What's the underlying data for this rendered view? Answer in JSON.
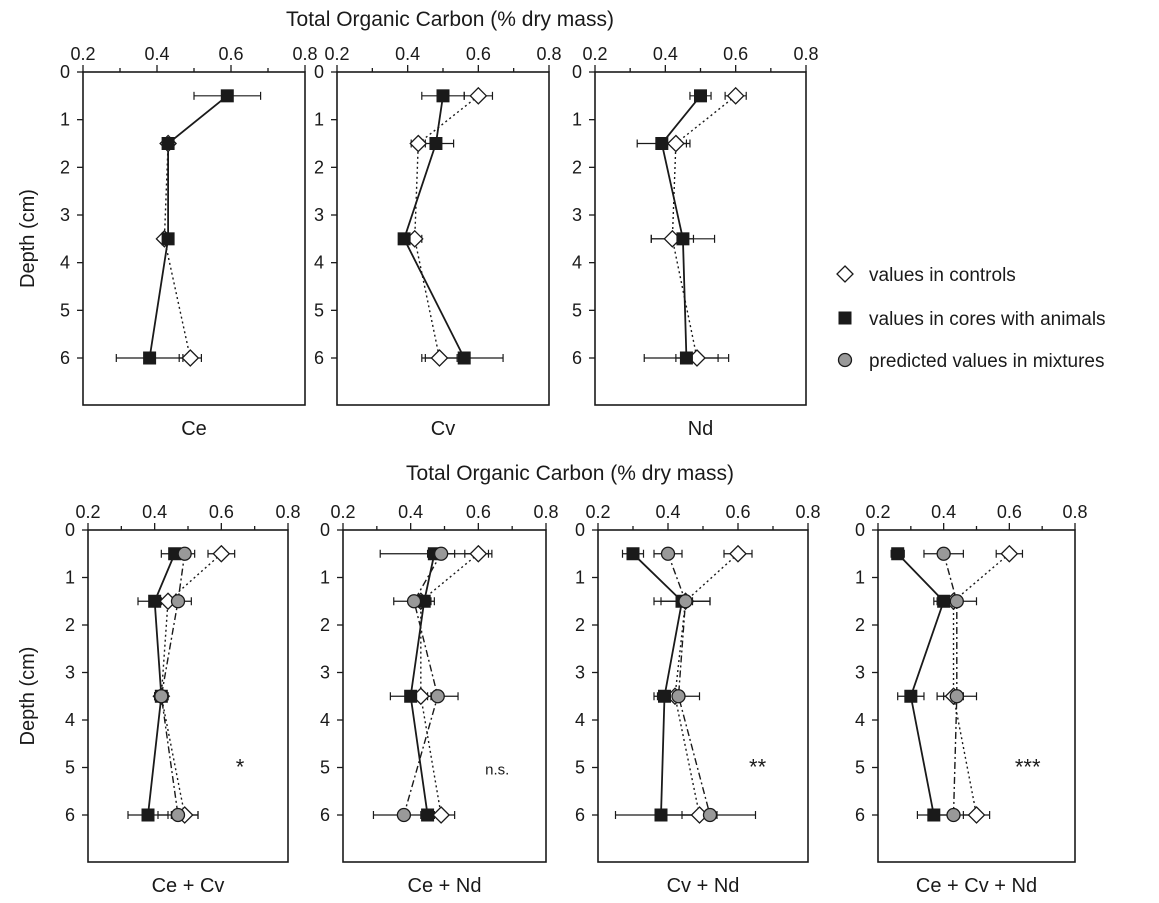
{
  "top_axis_title": "Total Organic Carbon  (% dry mass)",
  "bottom_axis_title": "Total Organic Carbon  (% dry mass)",
  "legend": [
    {
      "marker": "diamond-open",
      "label": "values in controls"
    },
    {
      "marker": "square-filled",
      "label": "values in cores with animals"
    },
    {
      "marker": "circle-grey",
      "label": "predicted values in mixtures"
    }
  ],
  "colors": {
    "filled": "#1a1a1a",
    "open": "#ffffff",
    "grey": "#999999"
  },
  "chart_data": [
    {
      "type": "scatter",
      "panel": "Ce",
      "xlabel": "",
      "ylabel": "Depth (cm)",
      "xlim": [
        0.2,
        0.8
      ],
      "ylim": [
        0,
        7
      ],
      "xticks": [
        0.2,
        0.4,
        0.6,
        0.8
      ],
      "yticks": [
        0,
        1,
        2,
        3,
        4,
        5,
        6
      ],
      "depths": [
        0.5,
        1.5,
        3.5,
        6
      ],
      "series": [
        {
          "name": "values in controls",
          "values": [
            null,
            0.43,
            0.42,
            0.49
          ],
          "err": [
            null,
            0.01,
            0.01,
            0.03
          ]
        },
        {
          "name": "values in cores with animals",
          "values": [
            0.59,
            0.43,
            0.43,
            0.38
          ],
          "err": [
            0.09,
            0.01,
            0.01,
            0.09
          ]
        }
      ],
      "significance": ""
    },
    {
      "type": "scatter",
      "panel": "Cv",
      "xlabel": "",
      "ylabel": "",
      "xlim": [
        0.2,
        0.8
      ],
      "ylim": [
        0,
        7
      ],
      "xticks": [
        0.2,
        0.4,
        0.6,
        0.8
      ],
      "yticks": [
        0,
        1,
        2,
        3,
        4,
        5,
        6
      ],
      "depths": [
        0.5,
        1.5,
        3.5,
        6
      ],
      "series": [
        {
          "name": "values in controls",
          "values": [
            0.6,
            0.43,
            0.42,
            0.49
          ],
          "err": [
            0.04,
            0.02,
            0.02,
            0.05
          ]
        },
        {
          "name": "values in cores with animals",
          "values": [
            0.5,
            0.48,
            0.39,
            0.56
          ],
          "err": [
            0.06,
            0.05,
            0.01,
            0.11
          ]
        }
      ],
      "significance": ""
    },
    {
      "type": "scatter",
      "panel": "Nd",
      "xlabel": "",
      "ylabel": "",
      "xlim": [
        0.2,
        0.8
      ],
      "ylim": [
        0,
        7
      ],
      "xticks": [
        0.2,
        0.4,
        0.6,
        0.8
      ],
      "yticks": [
        0,
        1,
        2,
        3,
        4,
        5,
        6
      ],
      "depths": [
        0.5,
        1.5,
        3.5,
        6
      ],
      "series": [
        {
          "name": "values in controls",
          "values": [
            0.6,
            0.43,
            0.42,
            0.49
          ],
          "err": [
            0.03,
            0.04,
            0.06,
            0.06
          ]
        },
        {
          "name": "values in cores with animals",
          "values": [
            0.5,
            0.39,
            0.45,
            0.46
          ],
          "err": [
            0.03,
            0.07,
            0.09,
            0.12
          ]
        }
      ],
      "significance": ""
    },
    {
      "type": "scatter",
      "panel": "Ce + Cv",
      "xlabel": "",
      "ylabel": "Depth (cm)",
      "xlim": [
        0.2,
        0.8
      ],
      "ylim": [
        0,
        7
      ],
      "xticks": [
        0.2,
        0.4,
        0.6,
        0.8
      ],
      "yticks": [
        0,
        1,
        2,
        3,
        4,
        5,
        6
      ],
      "depths": [
        0.5,
        1.5,
        3.5,
        6
      ],
      "series": [
        {
          "name": "values in controls",
          "values": [
            0.6,
            0.44,
            0.42,
            0.49
          ],
          "err": [
            0.04,
            0.02,
            0.02,
            0.04
          ]
        },
        {
          "name": "values in cores with animals",
          "values": [
            0.46,
            0.4,
            0.42,
            0.38
          ],
          "err": [
            0.04,
            0.05,
            0.02,
            0.06
          ]
        },
        {
          "name": "predicted values in mixtures",
          "values": [
            0.49,
            0.47,
            0.42,
            0.47
          ],
          "err": [
            0.03,
            0.04,
            0.02,
            0.06
          ]
        }
      ],
      "significance": "*"
    },
    {
      "type": "scatter",
      "panel": "Ce + Nd",
      "xlabel": "",
      "ylabel": "",
      "xlim": [
        0.2,
        0.8
      ],
      "ylim": [
        0,
        7
      ],
      "xticks": [
        0.2,
        0.4,
        0.6,
        0.8
      ],
      "yticks": [
        0,
        1,
        2,
        3,
        4,
        5,
        6
      ],
      "depths": [
        0.5,
        1.5,
        3.5,
        6
      ],
      "series": [
        {
          "name": "values in controls",
          "values": [
            0.6,
            0.43,
            0.43,
            0.49
          ],
          "err": [
            0.04,
            0.02,
            0.02,
            0.04
          ]
        },
        {
          "name": "values in cores with animals",
          "values": [
            0.47,
            0.44,
            0.4,
            0.45
          ],
          "err": [
            0.16,
            0.02,
            0.06,
            0.02
          ]
        },
        {
          "name": "predicted values in mixtures",
          "values": [
            0.49,
            0.41,
            0.48,
            0.38
          ],
          "err": [
            0.04,
            0.06,
            0.06,
            0.09
          ]
        }
      ],
      "significance": "n.s."
    },
    {
      "type": "scatter",
      "panel": "Cv + Nd",
      "xlabel": "",
      "ylabel": "",
      "xlim": [
        0.2,
        0.8
      ],
      "ylim": [
        0,
        7
      ],
      "xticks": [
        0.2,
        0.4,
        0.6,
        0.8
      ],
      "yticks": [
        0,
        1,
        2,
        3,
        4,
        5,
        6
      ],
      "depths": [
        0.5,
        1.5,
        3.5,
        6
      ],
      "series": [
        {
          "name": "values in controls",
          "values": [
            0.6,
            0.45,
            0.42,
            0.49
          ],
          "err": [
            0.04,
            0.02,
            0.02,
            0.05
          ]
        },
        {
          "name": "values in cores with animals",
          "values": [
            0.3,
            0.44,
            0.39,
            0.38
          ],
          "err": [
            0.03,
            0.08,
            0.03,
            0.13
          ]
        },
        {
          "name": "predicted values in mixtures",
          "values": [
            0.4,
            0.45,
            0.43,
            0.52
          ],
          "err": [
            0.04,
            0.07,
            0.06,
            0.13
          ]
        }
      ],
      "significance": "**"
    },
    {
      "type": "scatter",
      "panel": "Ce + Cv + Nd",
      "xlabel": "",
      "ylabel": "",
      "xlim": [
        0.2,
        0.8
      ],
      "ylim": [
        0,
        7
      ],
      "xticks": [
        0.2,
        0.4,
        0.6,
        0.8
      ],
      "yticks": [
        0,
        1,
        2,
        3,
        4,
        5,
        6
      ],
      "depths": [
        0.5,
        1.5,
        3.5,
        6
      ],
      "series": [
        {
          "name": "values in controls",
          "values": [
            0.6,
            0.43,
            0.43,
            0.5
          ],
          "err": [
            0.04,
            0.02,
            0.03,
            0.04
          ]
        },
        {
          "name": "values in cores with animals",
          "values": [
            0.26,
            0.4,
            0.3,
            0.37
          ],
          "err": [
            0.02,
            0.03,
            0.04,
            0.05
          ]
        },
        {
          "name": "predicted values in mixtures",
          "values": [
            0.4,
            0.44,
            0.44,
            0.43
          ],
          "err": [
            0.06,
            0.06,
            0.06,
            0.06
          ]
        }
      ],
      "significance": "***"
    }
  ]
}
